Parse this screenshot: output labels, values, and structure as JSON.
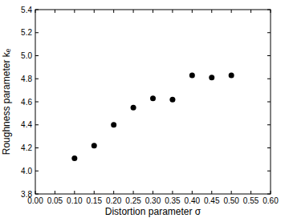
{
  "chart_data": {
    "type": "scatter",
    "x_label": "Distortion parameter σ",
    "y_label": "Roughness parameter kₑ",
    "x": [
      0.1,
      0.15,
      0.2,
      0.25,
      0.3,
      0.35,
      0.4,
      0.45,
      0.5
    ],
    "values": [
      4.11,
      4.22,
      4.4,
      4.55,
      4.63,
      4.62,
      4.83,
      4.81,
      4.83
    ],
    "color": "#000000",
    "marker": "circle",
    "xlim": [
      0,
      0.6
    ],
    "ylim": [
      3.8,
      5.4
    ],
    "xticks": [
      {
        "value": 0,
        "label": "0.00"
      },
      {
        "value": 0.05,
        "label": "0.05"
      },
      {
        "value": 0.1,
        "label": "0.10"
      },
      {
        "value": 0.15,
        "label": "0.15"
      },
      {
        "value": 0.2,
        "label": "0.20"
      },
      {
        "value": 0.25,
        "label": "0.25"
      },
      {
        "value": 0.3,
        "label": "0.30"
      },
      {
        "value": 0.35,
        "label": "0.35"
      },
      {
        "value": 0.4,
        "label": "0.40"
      },
      {
        "value": 0.45,
        "label": "0.45"
      },
      {
        "value": 0.5,
        "label": "0.50"
      },
      {
        "value": 0.55,
        "label": "0.55"
      },
      {
        "value": 0.6,
        "label": "0.60"
      }
    ],
    "yticks": [
      {
        "value": 3.8,
        "label": "3.8"
      },
      {
        "value": 4.0,
        "label": "4.0"
      },
      {
        "value": 4.2,
        "label": "4.2"
      },
      {
        "value": 4.4,
        "label": "4.4"
      },
      {
        "value": 4.6,
        "label": "4.6"
      },
      {
        "value": 4.8,
        "label": "4.8"
      },
      {
        "value": 5.0,
        "label": "5.0"
      },
      {
        "value": 5.2,
        "label": "5.2"
      },
      {
        "value": 5.4,
        "label": "5.4"
      }
    ],
    "grid": false
  }
}
